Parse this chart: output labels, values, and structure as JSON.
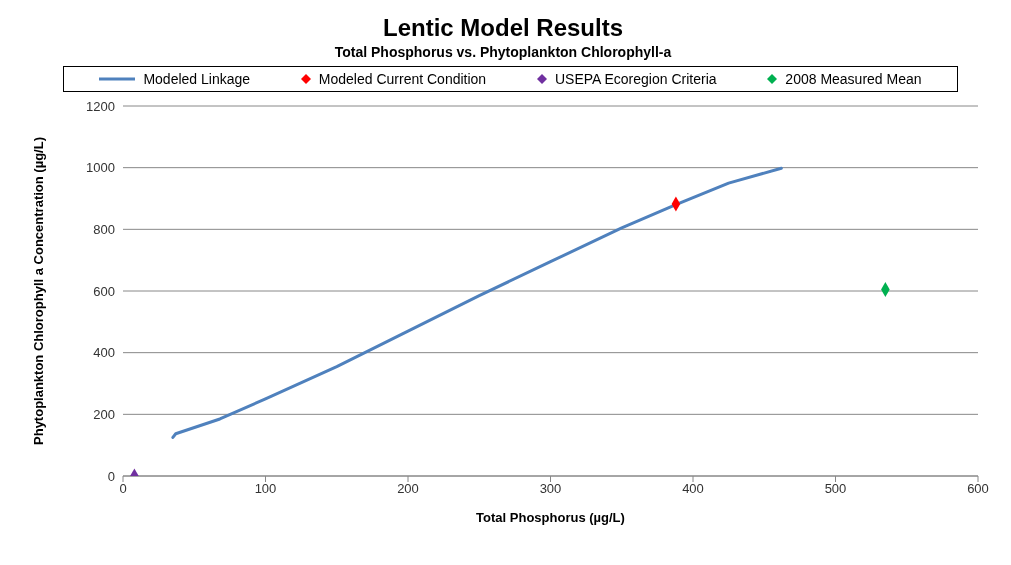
{
  "chart_data": {
    "type": "line",
    "title": "Lentic Model Results",
    "subtitle": "Total Phosphorus vs. Phytoplankton Chlorophyll-a",
    "xlabel": "Total Phosphorus (µg/L)",
    "ylabel": "Phytoplankton Chlorophyll a  Concentration (µg/L)",
    "xlim": [
      0,
      600
    ],
    "xticks": [
      0,
      100,
      200,
      300,
      400,
      500,
      600
    ],
    "ylim": [
      0,
      1200
    ],
    "yticks": [
      0,
      200,
      400,
      600,
      800,
      1000,
      1200
    ],
    "grid": "y",
    "legend": "top",
    "line_style": "solid",
    "series": [
      {
        "name": "Modeled Linkage",
        "marker": "none",
        "color": "#4f81bd",
        "x": [
          35,
          37,
          68,
          100,
          150,
          200,
          250,
          300,
          350,
          388,
          425,
          462
        ],
        "values": [
          125,
          137,
          185,
          250,
          355,
          470,
          585,
          695,
          805,
          880,
          950,
          998
        ]
      },
      {
        "name": "Modeled Current Condition",
        "type": "scatter",
        "marker": "diamond",
        "color": "#ff0000",
        "x": [
          388
        ],
        "values": [
          882
        ]
      },
      {
        "name": "USEPA Ecoregion Criteria",
        "type": "scatter",
        "marker": "diamond",
        "color": "#7030a0",
        "x": [
          8
        ],
        "values": [
          0
        ]
      },
      {
        "name": "2008 Measured Mean",
        "type": "scatter",
        "marker": "diamond",
        "color": "#00b050",
        "x": [
          535
        ],
        "values": [
          605
        ]
      }
    ]
  }
}
